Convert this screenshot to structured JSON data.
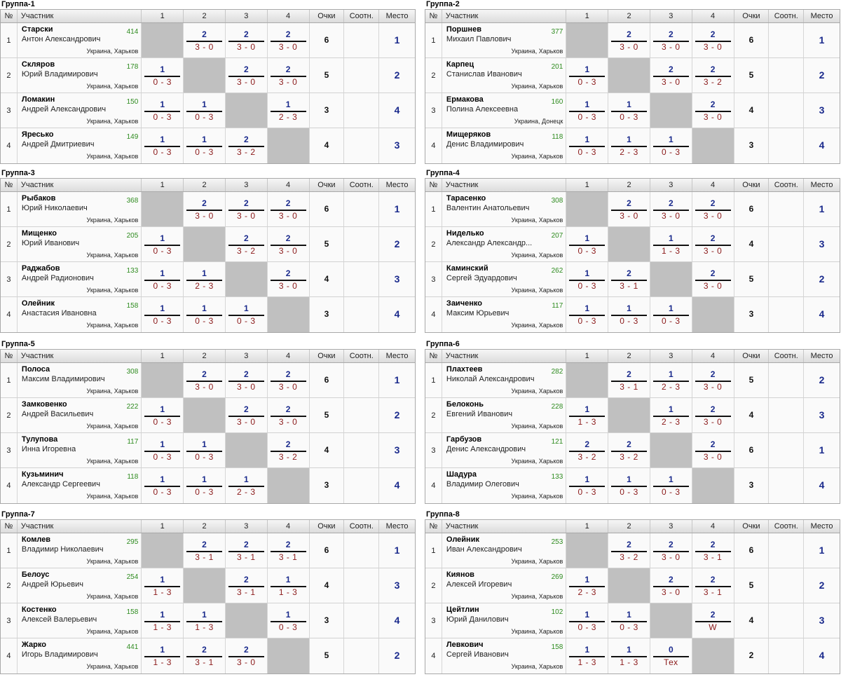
{
  "headers": {
    "num": "№",
    "participant": "Участник",
    "col1": "1",
    "col2": "2",
    "col3": "3",
    "col4": "4",
    "points": "Очки",
    "ratio": "Соотн.",
    "place": "Место"
  },
  "groups": [
    {
      "title": "Группа-1",
      "players": [
        {
          "num": "1",
          "surname": "Старски",
          "fullname": "Антон Александрович",
          "rating": "414",
          "location": "Украина, Харьков",
          "results": [
            null,
            {
              "pts": "2",
              "score": "3 - 0"
            },
            {
              "pts": "2",
              "score": "3 - 0"
            },
            {
              "pts": "2",
              "score": "3 - 0"
            }
          ],
          "points": "6",
          "ratio": "",
          "place": "1"
        },
        {
          "num": "2",
          "surname": "Скляров",
          "fullname": "Юрий Владимирович",
          "rating": "178",
          "location": "Украина, Харьков",
          "results": [
            {
              "pts": "1",
              "score": "0 - 3"
            },
            null,
            {
              "pts": "2",
              "score": "3 - 0"
            },
            {
              "pts": "2",
              "score": "3 - 0"
            }
          ],
          "points": "5",
          "ratio": "",
          "place": "2"
        },
        {
          "num": "3",
          "surname": "Ломакин",
          "fullname": "Андрей Александрович",
          "rating": "150",
          "location": "Украина, Харьков",
          "results": [
            {
              "pts": "1",
              "score": "0 - 3"
            },
            {
              "pts": "1",
              "score": "0 - 3"
            },
            null,
            {
              "pts": "1",
              "score": "2 - 3"
            }
          ],
          "points": "3",
          "ratio": "",
          "place": "4"
        },
        {
          "num": "4",
          "surname": "Яресько",
          "fullname": "Андрей Дмитриевич",
          "rating": "149",
          "location": "Украина, Харьков",
          "results": [
            {
              "pts": "1",
              "score": "0 - 3"
            },
            {
              "pts": "1",
              "score": "0 - 3"
            },
            {
              "pts": "2",
              "score": "3 - 2"
            },
            null
          ],
          "points": "4",
          "ratio": "",
          "place": "3"
        }
      ]
    },
    {
      "title": "Группа-2",
      "players": [
        {
          "num": "1",
          "surname": "Поршнев",
          "fullname": "Михаил Павлович",
          "rating": "377",
          "location": "Украина, Харьков",
          "results": [
            null,
            {
              "pts": "2",
              "score": "3 - 0"
            },
            {
              "pts": "2",
              "score": "3 - 0"
            },
            {
              "pts": "2",
              "score": "3 - 0"
            }
          ],
          "points": "6",
          "ratio": "",
          "place": "1"
        },
        {
          "num": "2",
          "surname": "Карпец",
          "fullname": "Станислав Иванович",
          "rating": "201",
          "location": "Украина, Харьков",
          "results": [
            {
              "pts": "1",
              "score": "0 - 3"
            },
            null,
            {
              "pts": "2",
              "score": "3 - 0"
            },
            {
              "pts": "2",
              "score": "3 - 2"
            }
          ],
          "points": "5",
          "ratio": "",
          "place": "2"
        },
        {
          "num": "3",
          "surname": "Ермакова",
          "fullname": "Полина Алексеевна",
          "rating": "160",
          "location": "Украина, Донецк",
          "results": [
            {
              "pts": "1",
              "score": "0 - 3"
            },
            {
              "pts": "1",
              "score": "0 - 3"
            },
            null,
            {
              "pts": "2",
              "score": "3 - 0"
            }
          ],
          "points": "4",
          "ratio": "",
          "place": "3"
        },
        {
          "num": "4",
          "surname": "Мищеряков",
          "fullname": "Денис Владимирович",
          "rating": "118",
          "location": "Украина, Харьков",
          "results": [
            {
              "pts": "1",
              "score": "0 - 3"
            },
            {
              "pts": "1",
              "score": "2 - 3"
            },
            {
              "pts": "1",
              "score": "0 - 3"
            },
            null
          ],
          "points": "3",
          "ratio": "",
          "place": "4"
        }
      ]
    },
    {
      "title": "Группа-3",
      "players": [
        {
          "num": "1",
          "surname": "Рыбаков",
          "fullname": "Юрий Николаевич",
          "rating": "368",
          "location": "Украина, Харьков",
          "results": [
            null,
            {
              "pts": "2",
              "score": "3 - 0"
            },
            {
              "pts": "2",
              "score": "3 - 0"
            },
            {
              "pts": "2",
              "score": "3 - 0"
            }
          ],
          "points": "6",
          "ratio": "",
          "place": "1"
        },
        {
          "num": "2",
          "surname": "Мищенко",
          "fullname": "Юрий Иванович",
          "rating": "205",
          "location": "Украина, Харьков",
          "results": [
            {
              "pts": "1",
              "score": "0 - 3"
            },
            null,
            {
              "pts": "2",
              "score": "3 - 2"
            },
            {
              "pts": "2",
              "score": "3 - 0"
            }
          ],
          "points": "5",
          "ratio": "",
          "place": "2"
        },
        {
          "num": "3",
          "surname": "Раджабов",
          "fullname": "Андрей Радионович",
          "rating": "133",
          "location": "Украина, Харьков",
          "results": [
            {
              "pts": "1",
              "score": "0 - 3"
            },
            {
              "pts": "1",
              "score": "2 - 3"
            },
            null,
            {
              "pts": "2",
              "score": "3 - 0"
            }
          ],
          "points": "4",
          "ratio": "",
          "place": "3"
        },
        {
          "num": "4",
          "surname": "Олейник",
          "fullname": "Анастасия Ивановна",
          "rating": "158",
          "location": "Украина, Харьков",
          "results": [
            {
              "pts": "1",
              "score": "0 - 3"
            },
            {
              "pts": "1",
              "score": "0 - 3"
            },
            {
              "pts": "1",
              "score": "0 - 3"
            },
            null
          ],
          "points": "3",
          "ratio": "",
          "place": "4"
        }
      ]
    },
    {
      "title": "Группа-4",
      "players": [
        {
          "num": "1",
          "surname": "Тарасенко",
          "fullname": "Валентин Анатольевич",
          "rating": "308",
          "location": "Украина, Харьков",
          "results": [
            null,
            {
              "pts": "2",
              "score": "3 - 0"
            },
            {
              "pts": "2",
              "score": "3 - 0"
            },
            {
              "pts": "2",
              "score": "3 - 0"
            }
          ],
          "points": "6",
          "ratio": "",
          "place": "1"
        },
        {
          "num": "2",
          "surname": "Ниделько",
          "fullname": "Александр Александр...",
          "rating": "207",
          "location": "Украина, Харьков",
          "results": [
            {
              "pts": "1",
              "score": "0 - 3"
            },
            null,
            {
              "pts": "1",
              "score": "1 - 3"
            },
            {
              "pts": "2",
              "score": "3 - 0"
            }
          ],
          "points": "4",
          "ratio": "",
          "place": "3"
        },
        {
          "num": "3",
          "surname": "Каминский",
          "fullname": "Сергей Эдуардович",
          "rating": "262",
          "location": "Украина, Харьков",
          "results": [
            {
              "pts": "1",
              "score": "0 - 3"
            },
            {
              "pts": "2",
              "score": "3 - 1"
            },
            null,
            {
              "pts": "2",
              "score": "3 - 0"
            }
          ],
          "points": "5",
          "ratio": "",
          "place": "2"
        },
        {
          "num": "4",
          "surname": "Заиченко",
          "fullname": "Максим Юрьевич",
          "rating": "117",
          "location": "Украина, Харьков",
          "results": [
            {
              "pts": "1",
              "score": "0 - 3"
            },
            {
              "pts": "1",
              "score": "0 - 3"
            },
            {
              "pts": "1",
              "score": "0 - 3"
            },
            null
          ],
          "points": "3",
          "ratio": "",
          "place": "4"
        }
      ]
    },
    {
      "title": "Группа-5",
      "players": [
        {
          "num": "1",
          "surname": "Полоса",
          "fullname": "Максим Владимирович",
          "rating": "308",
          "location": "Украина, Харьков",
          "results": [
            null,
            {
              "pts": "2",
              "score": "3 - 0"
            },
            {
              "pts": "2",
              "score": "3 - 0"
            },
            {
              "pts": "2",
              "score": "3 - 0"
            }
          ],
          "points": "6",
          "ratio": "",
          "place": "1"
        },
        {
          "num": "2",
          "surname": "Замковенко",
          "fullname": "Андрей Васильевич",
          "rating": "222",
          "location": "Украина, Харьков",
          "results": [
            {
              "pts": "1",
              "score": "0 - 3"
            },
            null,
            {
              "pts": "2",
              "score": "3 - 0"
            },
            {
              "pts": "2",
              "score": "3 - 0"
            }
          ],
          "points": "5",
          "ratio": "",
          "place": "2"
        },
        {
          "num": "3",
          "surname": "Тулупова",
          "fullname": "Инна Игоревна",
          "rating": "117",
          "location": "Украина, Харьков",
          "results": [
            {
              "pts": "1",
              "score": "0 - 3"
            },
            {
              "pts": "1",
              "score": "0 - 3"
            },
            null,
            {
              "pts": "2",
              "score": "3 - 2"
            }
          ],
          "points": "4",
          "ratio": "",
          "place": "3"
        },
        {
          "num": "4",
          "surname": "Кузьминич",
          "fullname": "Александр Сергеевич",
          "rating": "118",
          "location": "Украина, Харьков",
          "results": [
            {
              "pts": "1",
              "score": "0 - 3"
            },
            {
              "pts": "1",
              "score": "0 - 3"
            },
            {
              "pts": "1",
              "score": "2 - 3"
            },
            null
          ],
          "points": "3",
          "ratio": "",
          "place": "4"
        }
      ]
    },
    {
      "title": "Группа-6",
      "players": [
        {
          "num": "1",
          "surname": "Плахтеев",
          "fullname": "Николай Александрович",
          "rating": "282",
          "location": "Украина, Харьков",
          "results": [
            null,
            {
              "pts": "2",
              "score": "3 - 1"
            },
            {
              "pts": "1",
              "score": "2 - 3"
            },
            {
              "pts": "2",
              "score": "3 - 0"
            }
          ],
          "points": "5",
          "ratio": "",
          "place": "2"
        },
        {
          "num": "2",
          "surname": "Белоконь",
          "fullname": "Евгений Иванович",
          "rating": "228",
          "location": "Украина, Харьков",
          "results": [
            {
              "pts": "1",
              "score": "1 - 3"
            },
            null,
            {
              "pts": "1",
              "score": "2 - 3"
            },
            {
              "pts": "2",
              "score": "3 - 0"
            }
          ],
          "points": "4",
          "ratio": "",
          "place": "3"
        },
        {
          "num": "3",
          "surname": "Гарбузов",
          "fullname": "Денис Александрович",
          "rating": "121",
          "location": "Украина, Харьков",
          "results": [
            {
              "pts": "2",
              "score": "3 - 2"
            },
            {
              "pts": "2",
              "score": "3 - 2"
            },
            null,
            {
              "pts": "2",
              "score": "3 - 0"
            }
          ],
          "points": "6",
          "ratio": "",
          "place": "1"
        },
        {
          "num": "4",
          "surname": "Шадура",
          "fullname": "Владимир Олегович",
          "rating": "133",
          "location": "Украина, Харьков",
          "results": [
            {
              "pts": "1",
              "score": "0 - 3"
            },
            {
              "pts": "1",
              "score": "0 - 3"
            },
            {
              "pts": "1",
              "score": "0 - 3"
            },
            null
          ],
          "points": "3",
          "ratio": "",
          "place": "4"
        }
      ]
    },
    {
      "title": "Группа-7",
      "players": [
        {
          "num": "1",
          "surname": "Комлев",
          "fullname": "Владимир Николаевич",
          "rating": "295",
          "location": "Украина, Харьков",
          "results": [
            null,
            {
              "pts": "2",
              "score": "3 - 1"
            },
            {
              "pts": "2",
              "score": "3 - 1"
            },
            {
              "pts": "2",
              "score": "3 - 1"
            }
          ],
          "points": "6",
          "ratio": "",
          "place": "1"
        },
        {
          "num": "2",
          "surname": "Белоус",
          "fullname": "Андрей Юрьевич",
          "rating": "254",
          "location": "Украина, Харьков",
          "results": [
            {
              "pts": "1",
              "score": "1 - 3"
            },
            null,
            {
              "pts": "2",
              "score": "3 - 1"
            },
            {
              "pts": "1",
              "score": "1 - 3"
            }
          ],
          "points": "4",
          "ratio": "",
          "place": "3"
        },
        {
          "num": "3",
          "surname": "Костенко",
          "fullname": "Алексей Валерьевич",
          "rating": "158",
          "location": "Украина, Харьков",
          "results": [
            {
              "pts": "1",
              "score": "1 - 3"
            },
            {
              "pts": "1",
              "score": "1 - 3"
            },
            null,
            {
              "pts": "1",
              "score": "0 - 3"
            }
          ],
          "points": "3",
          "ratio": "",
          "place": "4"
        },
        {
          "num": "4",
          "surname": "Жарко",
          "fullname": "Игорь Владимирович",
          "rating": "441",
          "location": "Украина, Харьков",
          "results": [
            {
              "pts": "1",
              "score": "1 - 3"
            },
            {
              "pts": "2",
              "score": "3 - 1"
            },
            {
              "pts": "2",
              "score": "3 - 0"
            },
            null
          ],
          "points": "5",
          "ratio": "",
          "place": "2"
        }
      ]
    },
    {
      "title": "Группа-8",
      "players": [
        {
          "num": "1",
          "surname": "Олейник",
          "fullname": "Иван Александрович",
          "rating": "253",
          "location": "Украина, Харьков",
          "results": [
            null,
            {
              "pts": "2",
              "score": "3 - 2"
            },
            {
              "pts": "2",
              "score": "3 - 0"
            },
            {
              "pts": "2",
              "score": "3 - 1"
            }
          ],
          "points": "6",
          "ratio": "",
          "place": "1"
        },
        {
          "num": "2",
          "surname": "Киянов",
          "fullname": "Алексей Игоревич",
          "rating": "269",
          "location": "Украина, Харьков",
          "results": [
            {
              "pts": "1",
              "score": "2 - 3"
            },
            null,
            {
              "pts": "2",
              "score": "3 - 0"
            },
            {
              "pts": "2",
              "score": "3 - 1"
            }
          ],
          "points": "5",
          "ratio": "",
          "place": "2"
        },
        {
          "num": "3",
          "surname": "Цейтлин",
          "fullname": "Юрий Данилович",
          "rating": "102",
          "location": "Украина, Харьков",
          "results": [
            {
              "pts": "1",
              "score": "0 - 3"
            },
            {
              "pts": "1",
              "score": "0 - 3"
            },
            null,
            {
              "pts": "2",
              "score": "W"
            }
          ],
          "points": "4",
          "ratio": "",
          "place": "3"
        },
        {
          "num": "4",
          "surname": "Левкович",
          "fullname": "Сергей Иванович",
          "rating": "158",
          "location": "Украина, Харьков",
          "results": [
            {
              "pts": "1",
              "score": "1 - 3"
            },
            {
              "pts": "1",
              "score": "1 - 3"
            },
            {
              "pts": "0",
              "score": "Тех"
            },
            null
          ],
          "points": "2",
          "ratio": "",
          "place": "4"
        }
      ]
    }
  ]
}
